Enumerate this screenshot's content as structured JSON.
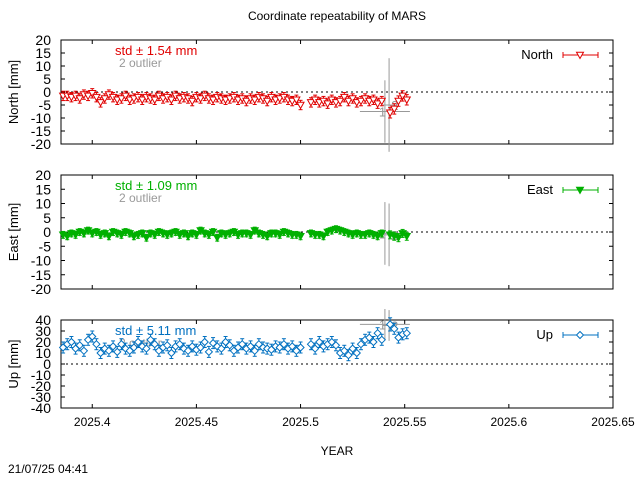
{
  "figure": {
    "title": "Coordinate repeatability of MARS",
    "xlabel": "YEAR",
    "timestamp": "21/07/25 04:41"
  },
  "chart_data": [
    {
      "type": "scatter",
      "panel": "north",
      "ylabel": "North [mm]",
      "xlim": [
        2025.385,
        2025.65
      ],
      "ylim": [
        -20,
        20
      ],
      "yticks": [
        "20",
        "15",
        "10",
        "5",
        "0",
        "-5",
        "-10",
        "-15",
        "-20"
      ],
      "ytick_values": [
        20,
        15,
        10,
        5,
        0,
        -5,
        -10,
        -15,
        -20
      ],
      "legend": "North",
      "legend_position": "top-right",
      "color": "#e00000",
      "marker": "triangle-down-open",
      "std_label": "std ± 1.54 mm",
      "outlier_label": "2 outlier",
      "outlier_marks": [
        "1",
        "2"
      ],
      "series": {
        "x": [
          2025.386,
          2025.388,
          2025.39,
          2025.392,
          2025.394,
          2025.396,
          2025.398,
          2025.4,
          2025.402,
          2025.404,
          2025.406,
          2025.408,
          2025.41,
          2025.412,
          2025.414,
          2025.416,
          2025.418,
          2025.42,
          2025.422,
          2025.424,
          2025.426,
          2025.428,
          2025.43,
          2025.432,
          2025.434,
          2025.436,
          2025.438,
          2025.44,
          2025.442,
          2025.444,
          2025.446,
          2025.448,
          2025.45,
          2025.452,
          2025.454,
          2025.456,
          2025.458,
          2025.46,
          2025.462,
          2025.464,
          2025.466,
          2025.468,
          2025.47,
          2025.472,
          2025.474,
          2025.476,
          2025.478,
          2025.48,
          2025.482,
          2025.484,
          2025.486,
          2025.488,
          2025.49,
          2025.492,
          2025.494,
          2025.496,
          2025.498,
          2025.5,
          2025.505,
          2025.507,
          2025.509,
          2025.511,
          2025.513,
          2025.515,
          2025.517,
          2025.519,
          2025.521,
          2025.523,
          2025.525,
          2025.527,
          2025.529,
          2025.531,
          2025.533,
          2025.535,
          2025.537,
          2025.539,
          2025.543,
          2025.545,
          2025.547,
          2025.549,
          2025.551
        ],
        "y": [
          -1.5,
          -1.5,
          -2.0,
          -1.5,
          -2.5,
          -1.0,
          -1.5,
          -0.5,
          -2.0,
          -4.0,
          -2.5,
          -1.0,
          -2.0,
          -3.0,
          -2.5,
          -1.5,
          -3.0,
          -2.5,
          -2.0,
          -3.0,
          -2.0,
          -2.5,
          -3.0,
          -1.5,
          -2.5,
          -2.0,
          -3.0,
          -1.5,
          -2.5,
          -2.0,
          -2.5,
          -3.5,
          -2.0,
          -2.5,
          -1.5,
          -2.5,
          -3.0,
          -2.0,
          -2.5,
          -3.0,
          -2.5,
          -2.0,
          -3.0,
          -2.5,
          -3.5,
          -2.5,
          -3.0,
          -2.0,
          -2.5,
          -3.5,
          -2.0,
          -3.0,
          -2.5,
          -2.0,
          -3.0,
          -3.5,
          -3.0,
          -5.0,
          -4.0,
          -3.0,
          -4.0,
          -3.5,
          -4.5,
          -3.0,
          -4.0,
          -3.5,
          -2.0,
          -3.5,
          -2.5,
          -4.0,
          -3.5,
          -2.5,
          -3.5,
          -3.0,
          -4.5,
          -3.5,
          -8.0,
          -6.5,
          -3.5,
          -1.5,
          -3.0
        ],
        "err": [
          1.8,
          1.8,
          1.8,
          1.8,
          1.8,
          1.8,
          1.8,
          1.8,
          1.8,
          1.8,
          1.8,
          1.8,
          1.8,
          1.8,
          1.8,
          1.8,
          1.8,
          1.8,
          1.8,
          1.8,
          1.8,
          1.8,
          1.8,
          1.8,
          1.8,
          1.8,
          1.8,
          1.8,
          1.8,
          1.8,
          1.8,
          1.8,
          1.8,
          1.8,
          1.8,
          1.8,
          1.8,
          1.8,
          1.8,
          1.8,
          1.8,
          1.8,
          1.8,
          1.8,
          1.8,
          1.8,
          1.8,
          1.8,
          1.8,
          1.8,
          1.8,
          1.8,
          1.8,
          1.8,
          1.8,
          1.8,
          1.8,
          1.8,
          1.8,
          1.8,
          1.8,
          1.8,
          1.8,
          1.8,
          1.8,
          1.8,
          1.8,
          1.8,
          1.8,
          1.8,
          1.8,
          1.8,
          1.8,
          1.8,
          1.8,
          1.8,
          2.0,
          2.0,
          2.0,
          2.0,
          2.0
        ]
      },
      "outliers": [
        {
          "x": 2025.5405,
          "y": -7.5,
          "yerr": 12,
          "xerr": 0.012
        },
        {
          "x": 2025.5425,
          "y": -5.0,
          "yerr": 18,
          "xerr": 0.003
        }
      ]
    },
    {
      "type": "scatter",
      "panel": "east",
      "ylabel": "East [mm]",
      "xlim": [
        2025.385,
        2025.65
      ],
      "ylim": [
        -20,
        20
      ],
      "yticks": [
        "20",
        "15",
        "10",
        "5",
        "0",
        "-5",
        "-10",
        "-15",
        "-20"
      ],
      "ytick_values": [
        20,
        15,
        10,
        5,
        0,
        -5,
        -10,
        -15,
        -20
      ],
      "legend": "East",
      "legend_position": "top-right",
      "color": "#00b000",
      "marker": "triangle-down-filled",
      "std_label": "std ± 1.09 mm",
      "outlier_label": "2 outlier",
      "outlier_marks": [
        "1",
        "2"
      ],
      "series": {
        "x": [
          2025.386,
          2025.388,
          2025.39,
          2025.392,
          2025.394,
          2025.396,
          2025.398,
          2025.4,
          2025.402,
          2025.404,
          2025.406,
          2025.408,
          2025.41,
          2025.412,
          2025.414,
          2025.416,
          2025.418,
          2025.42,
          2025.422,
          2025.424,
          2025.426,
          2025.428,
          2025.43,
          2025.432,
          2025.434,
          2025.436,
          2025.438,
          2025.44,
          2025.442,
          2025.444,
          2025.446,
          2025.448,
          2025.45,
          2025.452,
          2025.454,
          2025.456,
          2025.458,
          2025.46,
          2025.462,
          2025.464,
          2025.466,
          2025.468,
          2025.47,
          2025.472,
          2025.474,
          2025.476,
          2025.478,
          2025.48,
          2025.482,
          2025.484,
          2025.486,
          2025.488,
          2025.49,
          2025.492,
          2025.494,
          2025.496,
          2025.498,
          2025.5,
          2025.505,
          2025.507,
          2025.509,
          2025.511,
          2025.513,
          2025.515,
          2025.517,
          2025.519,
          2025.521,
          2025.523,
          2025.525,
          2025.527,
          2025.529,
          2025.531,
          2025.533,
          2025.535,
          2025.537,
          2025.539,
          2025.543,
          2025.545,
          2025.547,
          2025.549,
          2025.551
        ],
        "y": [
          -1.0,
          -1.5,
          -0.5,
          -1.0,
          0.0,
          -0.5,
          0.5,
          -0.5,
          0.0,
          -1.0,
          -0.5,
          -1.5,
          0.0,
          -0.5,
          -1.0,
          0.0,
          -0.5,
          -1.5,
          -1.0,
          -0.5,
          -2.0,
          -0.5,
          -1.0,
          0.0,
          -0.5,
          -1.0,
          -0.5,
          0.0,
          -1.0,
          -0.5,
          -1.5,
          -0.5,
          -1.0,
          0.5,
          -0.5,
          -1.0,
          0.0,
          -2.0,
          -0.5,
          -1.0,
          -0.5,
          0.0,
          -1.0,
          -0.5,
          -0.5,
          -1.0,
          0.5,
          -0.5,
          -1.0,
          -1.5,
          -0.5,
          -0.5,
          -1.0,
          0.0,
          -0.5,
          -1.0,
          -1.0,
          -1.5,
          -0.5,
          -1.0,
          -1.0,
          -1.5,
          0.0,
          0.5,
          1.0,
          0.5,
          0.0,
          -0.5,
          -1.0,
          -0.5,
          -1.0,
          -1.0,
          -0.5,
          -1.0,
          -1.5,
          -0.5,
          -1.0,
          -1.5,
          -2.0,
          -0.5,
          -1.5
        ],
        "err": [
          1.2,
          1.2,
          1.2,
          1.2,
          1.2,
          1.2,
          1.2,
          1.2,
          1.2,
          1.2,
          1.2,
          1.2,
          1.2,
          1.2,
          1.2,
          1.2,
          1.2,
          1.2,
          1.2,
          1.2,
          1.2,
          1.2,
          1.2,
          1.2,
          1.2,
          1.2,
          1.2,
          1.2,
          1.2,
          1.2,
          1.2,
          1.2,
          1.2,
          1.2,
          1.2,
          1.2,
          1.2,
          1.2,
          1.2,
          1.2,
          1.2,
          1.2,
          1.2,
          1.2,
          1.2,
          1.2,
          1.2,
          1.2,
          1.2,
          1.2,
          1.2,
          1.2,
          1.2,
          1.2,
          1.2,
          1.2,
          1.2,
          1.2,
          1.2,
          1.2,
          1.2,
          1.2,
          1.2,
          1.2,
          1.2,
          1.2,
          1.2,
          1.2,
          1.2,
          1.2,
          1.2,
          1.2,
          1.2,
          1.2,
          1.2,
          1.2,
          1.4,
          1.4,
          1.4,
          1.4,
          1.4
        ]
      },
      "outliers": [
        {
          "x": 2025.5405,
          "y": -0.5,
          "yerr": 11,
          "xerr": 0.012
        },
        {
          "x": 2025.5425,
          "y": -1.0,
          "yerr": 11,
          "xerr": 0.003
        }
      ]
    },
    {
      "type": "scatter",
      "panel": "up",
      "ylabel": "Up [mm]",
      "xlim": [
        2025.385,
        2025.65
      ],
      "ylim": [
        -40,
        40
      ],
      "yticks": [
        "40",
        "30",
        "20",
        "10",
        "0",
        "-10",
        "-20",
        "-30",
        "-40"
      ],
      "ytick_values": [
        40,
        30,
        20,
        10,
        0,
        -10,
        -20,
        -30,
        -40
      ],
      "xticks": [
        "2025.4",
        "2025.45",
        "2025.5",
        "2025.55",
        "2025.6",
        "2025.65"
      ],
      "xtick_values": [
        2025.4,
        2025.45,
        2025.5,
        2025.55,
        2025.6,
        2025.65
      ],
      "legend": "Up",
      "legend_position": "top-right",
      "color": "#0070c0",
      "marker": "diamond-open",
      "std_label": "std ± 5.11 mm",
      "outlier_label": "2 outlier",
      "outlier_marks": [
        "1",
        "2"
      ],
      "series": {
        "x": [
          2025.386,
          2025.388,
          2025.39,
          2025.392,
          2025.394,
          2025.396,
          2025.398,
          2025.4,
          2025.402,
          2025.404,
          2025.406,
          2025.408,
          2025.41,
          2025.412,
          2025.414,
          2025.416,
          2025.418,
          2025.42,
          2025.422,
          2025.424,
          2025.426,
          2025.428,
          2025.43,
          2025.432,
          2025.434,
          2025.436,
          2025.438,
          2025.44,
          2025.442,
          2025.444,
          2025.446,
          2025.448,
          2025.45,
          2025.452,
          2025.454,
          2025.456,
          2025.458,
          2025.46,
          2025.462,
          2025.464,
          2025.466,
          2025.468,
          2025.47,
          2025.472,
          2025.474,
          2025.476,
          2025.478,
          2025.48,
          2025.482,
          2025.484,
          2025.486,
          2025.488,
          2025.49,
          2025.492,
          2025.494,
          2025.496,
          2025.498,
          2025.5,
          2025.505,
          2025.507,
          2025.509,
          2025.511,
          2025.513,
          2025.515,
          2025.517,
          2025.519,
          2025.521,
          2025.523,
          2025.525,
          2025.527,
          2025.529,
          2025.531,
          2025.533,
          2025.535,
          2025.537,
          2025.539,
          2025.543,
          2025.545,
          2025.547,
          2025.549,
          2025.551
        ],
        "y": [
          15,
          18,
          20,
          14,
          17,
          12,
          22,
          25,
          18,
          10,
          14,
          12,
          16,
          11,
          18,
          14,
          12,
          15,
          20,
          16,
          14,
          22,
          18,
          12,
          15,
          17,
          10,
          16,
          18,
          14,
          12,
          16,
          13,
          15,
          20,
          11,
          19,
          16,
          14,
          20,
          17,
          12,
          15,
          18,
          14,
          16,
          12,
          18,
          15,
          14,
          13,
          16,
          15,
          18,
          14,
          16,
          12,
          15,
          18,
          14,
          20,
          16,
          18,
          20,
          17,
          10,
          12,
          8,
          14,
          10,
          18,
          22,
          24,
          20,
          28,
          22,
          36,
          32,
          24,
          27,
          28
        ],
        "err": [
          5,
          5,
          5,
          5,
          5,
          5,
          5,
          5,
          5,
          5,
          5,
          5,
          5,
          5,
          5,
          5,
          5,
          5,
          5,
          5,
          5,
          5,
          5,
          5,
          5,
          5,
          5,
          5,
          5,
          5,
          5,
          5,
          5,
          5,
          5,
          5,
          5,
          5,
          5,
          5,
          5,
          5,
          5,
          5,
          5,
          5,
          5,
          5,
          5,
          5,
          5,
          5,
          5,
          5,
          5,
          5,
          5,
          5,
          5,
          5,
          5,
          5,
          5,
          5,
          5,
          5,
          5,
          5,
          5,
          5,
          5,
          5,
          5,
          5,
          5,
          5,
          6,
          5,
          5,
          5,
          5
        ]
      },
      "outliers": [
        {
          "x": 2025.5405,
          "y": 36,
          "yerr": 14,
          "xerr": 0.012
        },
        {
          "x": 2025.5425,
          "y": 35,
          "yerr": 14,
          "xerr": 0.003
        }
      ]
    }
  ]
}
